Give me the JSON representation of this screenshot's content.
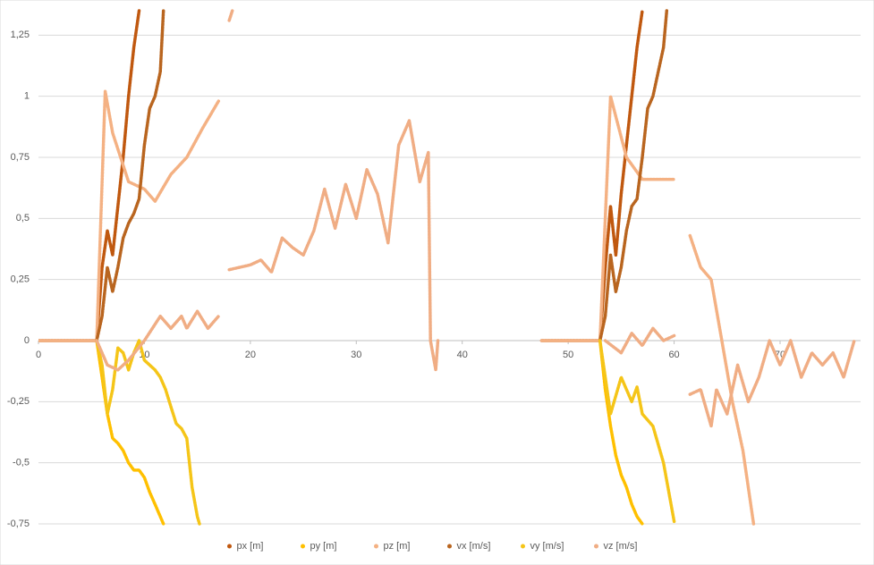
{
  "chart_data": {
    "type": "scatter",
    "legend": "bottom",
    "grid": true,
    "xlim": [
      0,
      77.6
    ],
    "ylim": [
      -0.75,
      1.35
    ],
    "xticks": [
      0,
      10,
      20,
      30,
      40,
      50,
      60,
      70
    ],
    "yticks": [
      {
        "value": -0.75,
        "label": "-0,75"
      },
      {
        "value": -0.5,
        "label": "-0,5"
      },
      {
        "value": -0.25,
        "label": "-0,25"
      },
      0,
      {
        "value": 0.25,
        "label": "0,25"
      },
      {
        "value": 0.5,
        "label": "0,5"
      },
      {
        "value": 0.75,
        "label": "0,75"
      },
      1,
      {
        "value": 1.25,
        "label": "1,25"
      }
    ],
    "series": [
      {
        "name": "px [m]",
        "color": "#c0580f",
        "x": [
          0,
          5.5,
          6,
          6.5,
          7,
          7.5,
          8,
          8.5,
          9,
          9.5,
          null,
          47.5,
          53,
          53.5,
          54,
          54.5,
          55,
          55.5,
          56,
          56.5,
          57
        ],
        "values": [
          0,
          0,
          0.3,
          0.45,
          0.35,
          0.55,
          0.75,
          1.0,
          1.2,
          1.35,
          null,
          0,
          0,
          0.3,
          0.55,
          0.35,
          0.6,
          0.8,
          1.0,
          1.2,
          1.35
        ]
      },
      {
        "name": "py [m]",
        "color": "#ffc000",
        "x": [
          5.5,
          6,
          6.5,
          7,
          7.5,
          8,
          8.5,
          9,
          9.5,
          10,
          10.5,
          11,
          11.8,
          null,
          53,
          53.5,
          54,
          54.5,
          55,
          55.5,
          56,
          56.5,
          57
        ],
        "values": [
          0,
          -0.15,
          -0.3,
          -0.4,
          -0.42,
          -0.45,
          -0.5,
          -0.53,
          -0.53,
          -0.56,
          -0.62,
          -0.67,
          -0.75,
          null,
          0,
          -0.2,
          -0.35,
          -0.47,
          -0.55,
          -0.6,
          -0.67,
          -0.72,
          -0.75
        ]
      },
      {
        "name": "pz [m]",
        "color": "#f4b183",
        "x": [
          0,
          5.5,
          6.3,
          7,
          8.5,
          10,
          11,
          12.5,
          14,
          15.5,
          17,
          null,
          47.5,
          53,
          54,
          55.5,
          57,
          60,
          null,
          61.5,
          62.5,
          63.5,
          64.5,
          65.5,
          66.5,
          67.5
        ],
        "values": [
          0,
          0,
          1.02,
          0.85,
          0.65,
          0.62,
          0.57,
          0.68,
          0.75,
          0.87,
          0.98,
          null,
          0,
          0,
          1.0,
          0.75,
          0.66,
          0.66,
          null,
          0.43,
          0.3,
          0.25,
          0,
          -0.25,
          -0.45,
          -0.75
        ]
      },
      {
        "name": "vx [m/s]",
        "color": "#b9651f",
        "x": [
          5.5,
          6,
          6.5,
          7,
          7.5,
          8,
          8.5,
          9,
          9.5,
          10,
          10.5,
          11,
          11.5,
          11.8,
          null,
          53,
          53.5,
          54,
          54.5,
          55,
          55.5,
          56,
          56.5,
          57,
          57.5,
          58,
          58.5,
          59,
          59.3
        ],
        "values": [
          0,
          0.1,
          0.3,
          0.2,
          0.3,
          0.42,
          0.48,
          0.52,
          0.58,
          0.8,
          0.95,
          1.0,
          1.1,
          1.35,
          null,
          0,
          0.1,
          0.35,
          0.2,
          0.3,
          0.45,
          0.55,
          0.58,
          0.75,
          0.95,
          1.0,
          1.1,
          1.2,
          1.35
        ]
      },
      {
        "name": "vy [m/s]",
        "color": "#f5c518",
        "x": [
          5.5,
          6,
          6.5,
          7,
          7.5,
          8,
          8.5,
          9,
          9.5,
          10,
          11,
          11.5,
          12,
          12.5,
          13,
          13.5,
          14,
          14.5,
          15,
          15.2,
          null,
          53,
          54,
          55,
          56,
          56.5,
          57,
          58,
          59,
          60
        ],
        "values": [
          0,
          -0.1,
          -0.3,
          -0.2,
          -0.03,
          -0.05,
          -0.12,
          -0.05,
          0,
          -0.08,
          -0.12,
          -0.15,
          -0.2,
          -0.27,
          -0.34,
          -0.36,
          -0.4,
          -0.6,
          -0.72,
          -0.75,
          null,
          0,
          -0.3,
          -0.15,
          -0.25,
          -0.19,
          -0.3,
          -0.35,
          -0.5,
          -0.74
        ]
      },
      {
        "name": "vz [m/s]",
        "color": "#f0ad84",
        "x": [
          5.5,
          6.5,
          7.5,
          8.5,
          10,
          11.5,
          12.5,
          13.5,
          14,
          15,
          16,
          17,
          null,
          18,
          18.3,
          null,
          18,
          20,
          21,
          22,
          23,
          24,
          25,
          26,
          27,
          28,
          29,
          30,
          31,
          32,
          33,
          34,
          35,
          36,
          36.8,
          37,
          37.5,
          37.7,
          null,
          53.5,
          55,
          56,
          57,
          58,
          59,
          60,
          null,
          61.5,
          62.5,
          63.5,
          64,
          65,
          66,
          67,
          68,
          69,
          70,
          71,
          72,
          73,
          74,
          75,
          76,
          77
        ],
        "values": [
          0,
          -0.1,
          -0.12,
          -0.08,
          0,
          0.1,
          0.05,
          0.1,
          0.05,
          0.12,
          0.05,
          0.1,
          null,
          1.31,
          1.35,
          null,
          0.29,
          0.31,
          0.33,
          0.28,
          0.42,
          0.38,
          0.35,
          0.45,
          0.62,
          0.46,
          0.64,
          0.5,
          0.7,
          0.6,
          0.4,
          0.8,
          0.9,
          0.65,
          0.77,
          0,
          -0.12,
          0,
          null,
          0,
          -0.05,
          0.03,
          -0.02,
          0.05,
          0,
          0.02,
          null,
          -0.22,
          -0.2,
          -0.35,
          -0.2,
          -0.3,
          -0.1,
          -0.25,
          -0.15,
          0,
          -0.1,
          0,
          -0.15,
          -0.05,
          -0.1,
          -0.05,
          -0.15,
          0
        ]
      }
    ]
  }
}
